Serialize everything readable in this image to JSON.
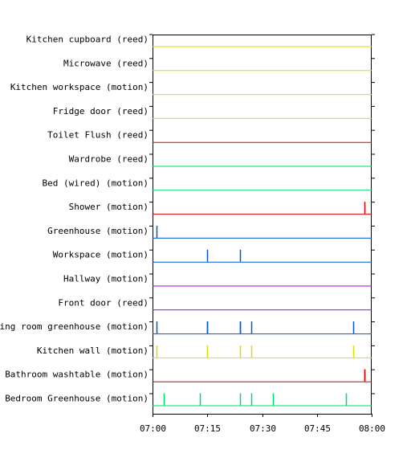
{
  "chart_data": {
    "type": "timeline",
    "title": "",
    "xlabel": "",
    "ylabel": "",
    "x_range": [
      "07:00",
      "08:00"
    ],
    "x_ticks": [
      "07:00",
      "07:15",
      "07:30",
      "07:45",
      "08:00"
    ],
    "grid": false,
    "legend": "none",
    "series": [
      {
        "name": "Kitchen cupboard (reed)",
        "color": "#dddd00",
        "events": []
      },
      {
        "name": "Microwave (reed)",
        "color": "#dddd00",
        "events": []
      },
      {
        "name": "Kitchen workspace (motion)",
        "color": "#dddd00",
        "events": []
      },
      {
        "name": "Fridge door (reed)",
        "color": "#dddd00",
        "events": []
      },
      {
        "name": "Toilet Flush (reed)",
        "color": "#dd0000",
        "events": []
      },
      {
        "name": "Wardrobe (reed)",
        "color": "#00dd66",
        "events": []
      },
      {
        "name": "Bed (wired) (motion)",
        "color": "#00dd66",
        "events": []
      },
      {
        "name": "Shower (motion)",
        "color": "#dd0000",
        "events": [
          "07:58"
        ]
      },
      {
        "name": "Greenhouse (motion)",
        "color": "#0055dd",
        "events": [
          "07:01"
        ]
      },
      {
        "name": "Workspace (motion)",
        "color": "#0055dd",
        "events": [
          "07:15",
          "07:24"
        ]
      },
      {
        "name": "Hallway (motion)",
        "color": "#aa00dd",
        "events": []
      },
      {
        "name": "Front door (reed)",
        "color": "#aa00dd",
        "events": []
      },
      {
        "name": "Living room greenhouse (motion)",
        "color": "#0055dd",
        "events": [
          "07:01",
          "07:15",
          "07:15",
          "07:24",
          "07:24",
          "07:27",
          "07:55"
        ]
      },
      {
        "name": "Kitchen wall (motion)",
        "color": "#dddd00",
        "events": [
          "07:01",
          "07:15",
          "07:24",
          "07:27",
          "07:55"
        ]
      },
      {
        "name": "Bathroom washtable (motion)",
        "color": "#dd0000",
        "events": [
          "07:58",
          "07:58"
        ]
      },
      {
        "name": "Bedroom Greenhouse (motion)",
        "color": "#00dd66",
        "events": [
          "07:03",
          "07:13",
          "07:24",
          "07:27",
          "07:33",
          "07:53"
        ]
      }
    ]
  }
}
